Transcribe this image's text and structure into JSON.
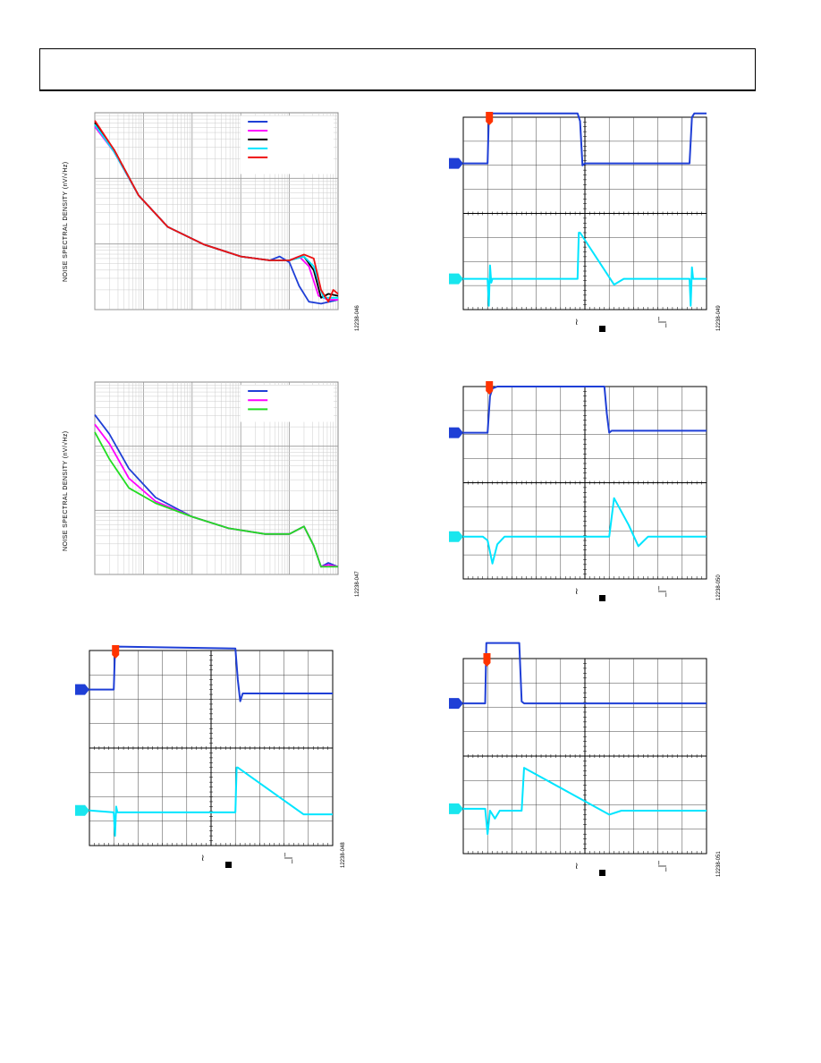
{
  "page": {
    "header_title": ""
  },
  "colors": {
    "blue": "#1f3fd6",
    "magenta": "#ff00ff",
    "black": "#000000",
    "cyan": "#00e5ff",
    "red": "#ee1111",
    "green": "#22dd22",
    "ground_marker_cyan": "#19e6ee",
    "trigger_marker": "#ff3300"
  },
  "chart_data": [
    {
      "type": "line",
      "scale": "log-log",
      "ylabel": "NOISE SPECTRAL DENSITY (nV/√Hz)",
      "fig_id": "12238-046",
      "legend": {
        "placement": "top-right",
        "entries": 5
      },
      "series": [
        {
          "color": "blue",
          "x": [
            0,
            0.08,
            0.18,
            0.3,
            0.45,
            0.6,
            0.72,
            0.76,
            0.8,
            0.84,
            0.88,
            0.93,
            1.0
          ],
          "y": [
            0.94,
            0.8,
            0.58,
            0.42,
            0.33,
            0.27,
            0.25,
            0.27,
            0.24,
            0.12,
            0.04,
            0.03,
            0.05
          ]
        },
        {
          "color": "magenta",
          "x": [
            0,
            0.08,
            0.18,
            0.3,
            0.45,
            0.6,
            0.72,
            0.8,
            0.84,
            0.88,
            0.92,
            0.96,
            1.0
          ],
          "y": [
            0.93,
            0.8,
            0.58,
            0.42,
            0.33,
            0.27,
            0.25,
            0.25,
            0.27,
            0.22,
            0.07,
            0.05,
            0.05
          ]
        },
        {
          "color": "black",
          "x": [
            0,
            0.08,
            0.18,
            0.3,
            0.45,
            0.6,
            0.72,
            0.8,
            0.86,
            0.9,
            0.93,
            0.96,
            1.0
          ],
          "y": [
            0.95,
            0.81,
            0.58,
            0.42,
            0.33,
            0.27,
            0.25,
            0.25,
            0.27,
            0.2,
            0.06,
            0.08,
            0.07
          ]
        },
        {
          "color": "cyan",
          "x": [
            0,
            0.08,
            0.18,
            0.3,
            0.45,
            0.6,
            0.72,
            0.8,
            0.86,
            0.9,
            0.94,
            1.0
          ],
          "y": [
            0.94,
            0.8,
            0.58,
            0.42,
            0.33,
            0.27,
            0.25,
            0.25,
            0.27,
            0.22,
            0.06,
            0.06
          ]
        },
        {
          "color": "red",
          "x": [
            0,
            0.08,
            0.18,
            0.3,
            0.45,
            0.6,
            0.72,
            0.8,
            0.86,
            0.9,
            0.93,
            0.96,
            0.98,
            1.0
          ],
          "y": [
            0.96,
            0.81,
            0.58,
            0.42,
            0.33,
            0.27,
            0.25,
            0.25,
            0.28,
            0.26,
            0.1,
            0.04,
            0.1,
            0.08
          ]
        }
      ]
    },
    {
      "type": "line",
      "scale": "log-log",
      "ylabel": "NOISE SPECTRAL DENSITY (nV/√Hz)",
      "fig_id": "12238-047",
      "legend": {
        "placement": "top-right",
        "entries": 3
      },
      "series": [
        {
          "color": "blue",
          "x": [
            0,
            0.06,
            0.14,
            0.25,
            0.4,
            0.55,
            0.7,
            0.8,
            0.86,
            0.9,
            0.93,
            0.96,
            1.0
          ],
          "y": [
            0.83,
            0.73,
            0.55,
            0.4,
            0.3,
            0.24,
            0.21,
            0.21,
            0.25,
            0.15,
            0.04,
            0.06,
            0.04
          ]
        },
        {
          "color": "magenta",
          "x": [
            0,
            0.06,
            0.14,
            0.25,
            0.4,
            0.55,
            0.7,
            0.8,
            0.86,
            0.9,
            0.93,
            0.96,
            1.0
          ],
          "y": [
            0.78,
            0.68,
            0.5,
            0.38,
            0.3,
            0.24,
            0.21,
            0.21,
            0.25,
            0.15,
            0.04,
            0.05,
            0.04
          ]
        },
        {
          "color": "green",
          "x": [
            0,
            0.06,
            0.14,
            0.25,
            0.4,
            0.55,
            0.7,
            0.8,
            0.86,
            0.9,
            0.93,
            0.96,
            1.0
          ],
          "y": [
            0.74,
            0.6,
            0.45,
            0.37,
            0.3,
            0.24,
            0.21,
            0.21,
            0.25,
            0.15,
            0.04,
            0.04,
            0.04
          ]
        }
      ]
    },
    {
      "type": "scope",
      "fig_id": "12238-048",
      "ch1": {
        "t": [
          0,
          0.1,
          0.105,
          0.115,
          0.6,
          0.61,
          0.62,
          0.63,
          0.64,
          1.0
        ],
        "v": [
          0.3,
          0.3,
          0.5,
          0.52,
          0.51,
          0.35,
          0.24,
          0.28,
          0.28,
          0.28
        ]
      },
      "ch2": {
        "t": [
          0,
          0.1,
          0.105,
          0.11,
          0.115,
          0.12,
          0.6,
          0.605,
          0.61,
          0.88,
          0.9,
          1.0
        ],
        "v": [
          -0.32,
          -0.33,
          -0.45,
          -0.3,
          -0.33,
          -0.33,
          -0.33,
          -0.1,
          -0.1,
          -0.34,
          -0.34,
          -0.34
        ]
      }
    },
    {
      "type": "scope",
      "fig_id": "12238-049",
      "ch1": {
        "t": [
          0,
          0.1,
          0.105,
          0.115,
          0.47,
          0.48,
          0.49,
          0.5,
          0.93,
          0.94,
          0.95,
          1.0
        ],
        "v": [
          0.26,
          0.26,
          0.5,
          0.52,
          0.52,
          0.48,
          0.25,
          0.26,
          0.26,
          0.5,
          0.52,
          0.52
        ]
      },
      "ch2": {
        "t": [
          0,
          0.1,
          0.105,
          0.11,
          0.115,
          0.12,
          0.125,
          0.47,
          0.475,
          0.48,
          0.62,
          0.66,
          0.93,
          0.935,
          0.94,
          0.945,
          1.0
        ],
        "v": [
          -0.34,
          -0.34,
          -0.48,
          -0.27,
          -0.36,
          -0.34,
          -0.34,
          -0.34,
          -0.1,
          -0.1,
          -0.37,
          -0.34,
          -0.34,
          -0.48,
          -0.28,
          -0.34,
          -0.34
        ]
      }
    },
    {
      "type": "scope",
      "fig_id": "12238-050",
      "ch1": {
        "t": [
          0,
          0.1,
          0.11,
          0.12,
          0.14,
          0.58,
          0.59,
          0.6,
          0.61,
          1.0
        ],
        "v": [
          0.26,
          0.26,
          0.45,
          0.49,
          0.5,
          0.5,
          0.36,
          0.26,
          0.27,
          0.27
        ]
      },
      "ch2": {
        "t": [
          0,
          0.08,
          0.1,
          0.12,
          0.14,
          0.17,
          0.2,
          0.58,
          0.6,
          0.62,
          0.68,
          0.72,
          0.76,
          0.8,
          1.0
        ],
        "v": [
          -0.28,
          -0.28,
          -0.3,
          -0.42,
          -0.32,
          -0.28,
          -0.28,
          -0.28,
          -0.28,
          -0.08,
          -0.22,
          -0.33,
          -0.28,
          -0.28,
          -0.28
        ]
      }
    },
    {
      "type": "scope",
      "fig_id": "12238-051",
      "ch1": {
        "t": [
          0,
          0.09,
          0.095,
          0.1,
          0.23,
          0.24,
          0.25,
          1.0
        ],
        "v": [
          0.27,
          0.27,
          0.58,
          0.58,
          0.58,
          0.28,
          0.27,
          0.27
        ]
      },
      "ch2": {
        "t": [
          0,
          0.09,
          0.1,
          0.11,
          0.13,
          0.15,
          0.23,
          0.24,
          0.25,
          0.6,
          0.65,
          1.0
        ],
        "v": [
          -0.27,
          -0.27,
          -0.4,
          -0.28,
          -0.32,
          -0.28,
          -0.28,
          -0.28,
          -0.06,
          -0.3,
          -0.28,
          -0.28
        ]
      }
    }
  ]
}
